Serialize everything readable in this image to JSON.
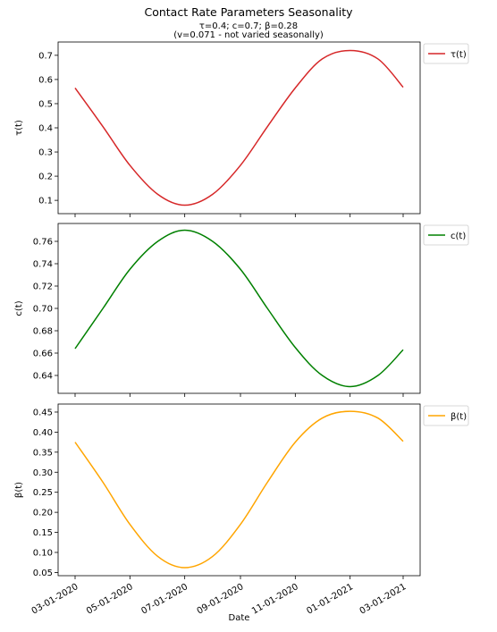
{
  "figure": {
    "title": "Contact Rate Parameters Seasonality",
    "subtitle_line1": "τ=0.4; c=0.7; β=0.28",
    "subtitle_line2": "(v=0.071 - not varied seasonally)",
    "xlabel": "Date"
  },
  "chart_data": [
    {
      "type": "line",
      "ylabel": "τ(t)",
      "legend": "τ(t)",
      "legend_position": "outside-top-right",
      "color": "#d62728",
      "x_range": [
        "2020-03-01",
        "2021-03-01"
      ],
      "ylim": [
        0.045,
        0.755
      ],
      "yticks": [
        0.1,
        0.2,
        0.3,
        0.4,
        0.5,
        0.6,
        0.7
      ],
      "ytick_labels": [
        "0.1",
        "0.2",
        "0.3",
        "0.4",
        "0.5",
        "0.6",
        "0.7"
      ],
      "series": [
        {
          "name": "τ(t)",
          "x": [
            "2020-03-01",
            "2020-04-01",
            "2020-05-01",
            "2020-06-01",
            "2020-07-01",
            "2020-08-01",
            "2020-09-01",
            "2020-10-01",
            "2020-11-01",
            "2020-12-01",
            "2021-01-01",
            "2021-02-01",
            "2021-03-01"
          ],
          "values": [
            0.565,
            0.405,
            0.245,
            0.125,
            0.08,
            0.125,
            0.245,
            0.405,
            0.565,
            0.685,
            0.72,
            0.685,
            0.568
          ]
        }
      ]
    },
    {
      "type": "line",
      "ylabel": "c(t)",
      "legend": "c(t)",
      "legend_position": "outside-top-right",
      "color": "#008000",
      "x_range": [
        "2020-03-01",
        "2021-03-01"
      ],
      "ylim": [
        0.624,
        0.776
      ],
      "yticks": [
        0.64,
        0.66,
        0.68,
        0.7,
        0.72,
        0.74,
        0.76
      ],
      "ytick_labels": [
        "0.64",
        "0.66",
        "0.68",
        "0.70",
        "0.72",
        "0.74",
        "0.76"
      ],
      "series": [
        {
          "name": "c(t)",
          "x": [
            "2020-03-01",
            "2020-04-01",
            "2020-05-01",
            "2020-06-01",
            "2020-07-01",
            "2020-08-01",
            "2020-09-01",
            "2020-10-01",
            "2020-11-01",
            "2020-12-01",
            "2021-01-01",
            "2021-02-01",
            "2021-03-01"
          ],
          "values": [
            0.664,
            0.7,
            0.735,
            0.76,
            0.77,
            0.76,
            0.735,
            0.7,
            0.665,
            0.64,
            0.63,
            0.64,
            0.663
          ]
        }
      ]
    },
    {
      "type": "line",
      "ylabel": "β(t)",
      "legend": "β(t)",
      "legend_position": "outside-top-right",
      "color": "#ffa500",
      "x_range": [
        "2020-03-01",
        "2021-03-01"
      ],
      "ylim": [
        0.042,
        0.47
      ],
      "yticks": [
        0.05,
        0.1,
        0.15,
        0.2,
        0.25,
        0.3,
        0.35,
        0.4,
        0.45
      ],
      "ytick_labels": [
        "0.05",
        "0.10",
        "0.15",
        "0.20",
        "0.25",
        "0.30",
        "0.35",
        "0.40",
        "0.45"
      ],
      "series": [
        {
          "name": "β(t)",
          "x": [
            "2020-03-01",
            "2020-04-01",
            "2020-05-01",
            "2020-06-01",
            "2020-07-01",
            "2020-08-01",
            "2020-09-01",
            "2020-10-01",
            "2020-11-01",
            "2020-12-01",
            "2021-01-01",
            "2021-02-01",
            "2021-03-01"
          ],
          "values": [
            0.375,
            0.275,
            0.17,
            0.09,
            0.062,
            0.09,
            0.17,
            0.275,
            0.375,
            0.435,
            0.452,
            0.435,
            0.377
          ]
        }
      ]
    }
  ],
  "xaxis": {
    "ticks": [
      "2020-03-01",
      "2020-05-01",
      "2020-07-01",
      "2020-09-01",
      "2020-11-01",
      "2021-01-01",
      "2021-03-01"
    ],
    "tick_labels": [
      "03-01-2020",
      "05-01-2020",
      "07-01-2020",
      "09-01-2020",
      "11-01-2020",
      "01-01-2021",
      "03-01-2021"
    ],
    "tick_rotation_deg": 30
  }
}
